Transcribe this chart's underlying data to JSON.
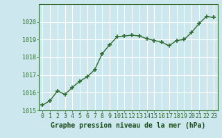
{
  "x": [
    0,
    1,
    2,
    3,
    4,
    5,
    6,
    7,
    8,
    9,
    10,
    11,
    12,
    13,
    14,
    15,
    16,
    17,
    18,
    19,
    20,
    21,
    22,
    23
  ],
  "y": [
    1015.3,
    1015.55,
    1016.1,
    1015.9,
    1016.3,
    1016.65,
    1016.9,
    1017.3,
    1018.2,
    1018.7,
    1019.15,
    1019.2,
    1019.25,
    1019.2,
    1019.05,
    1018.95,
    1018.85,
    1018.65,
    1018.95,
    1019.0,
    1019.4,
    1019.9,
    1020.3,
    1020.25
  ],
  "line_color": "#2d6a2d",
  "marker_color": "#2d6a2d",
  "bg_color": "#cce8ee",
  "grid_color": "#ffffff",
  "xlabel": "Graphe pression niveau de la mer (hPa)",
  "xlabel_color": "#1a4d1a",
  "tick_color": "#2d6a2d",
  "spine_color": "#2d6a2d",
  "ylim": [
    1015,
    1021
  ],
  "xlim_min": -0.5,
  "xlim_max": 23.5,
  "yticks": [
    1015,
    1016,
    1017,
    1018,
    1019,
    1020
  ],
  "xticks": [
    0,
    1,
    2,
    3,
    4,
    5,
    6,
    7,
    8,
    9,
    10,
    11,
    12,
    13,
    14,
    15,
    16,
    17,
    18,
    19,
    20,
    21,
    22,
    23
  ],
  "marker_size": 4,
  "line_width": 1.0,
  "tick_fontsize": 6,
  "xlabel_fontsize": 7
}
